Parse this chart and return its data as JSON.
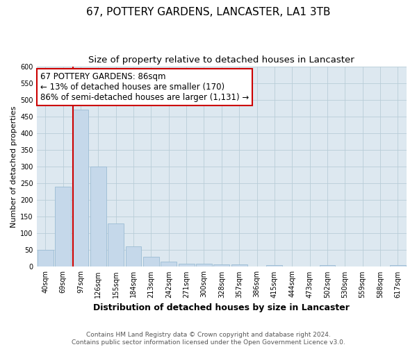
{
  "title": "67, POTTERY GARDENS, LANCASTER, LA1 3TB",
  "subtitle": "Size of property relative to detached houses in Lancaster",
  "xlabel": "Distribution of detached houses by size in Lancaster",
  "ylabel": "Number of detached properties",
  "bar_labels": [
    "40sqm",
    "69sqm",
    "97sqm",
    "126sqm",
    "155sqm",
    "184sqm",
    "213sqm",
    "242sqm",
    "271sqm",
    "300sqm",
    "328sqm",
    "357sqm",
    "386sqm",
    "415sqm",
    "444sqm",
    "473sqm",
    "502sqm",
    "530sqm",
    "559sqm",
    "588sqm",
    "617sqm"
  ],
  "bar_heights": [
    50,
    240,
    470,
    300,
    130,
    62,
    30,
    15,
    10,
    10,
    8,
    7,
    0,
    5,
    0,
    0,
    5,
    0,
    0,
    0,
    5
  ],
  "bar_color": "#c5d8ea",
  "bar_edge_color": "#9bbcd4",
  "vline_color": "#cc0000",
  "vline_bar_index": 2,
  "annotation_text": "67 POTTERY GARDENS: 86sqm\n← 13% of detached houses are smaller (170)\n86% of semi-detached houses are larger (1,131) →",
  "annotation_box_facecolor": "#ffffff",
  "annotation_box_edgecolor": "#cc0000",
  "plot_bg_color": "#dde8f0",
  "fig_bg_color": "#ffffff",
  "ylim": [
    0,
    600
  ],
  "yticks": [
    0,
    50,
    100,
    150,
    200,
    250,
    300,
    350,
    400,
    450,
    500,
    550,
    600
  ],
  "grid_color": "#b8cdd8",
  "footnote": "Contains HM Land Registry data © Crown copyright and database right 2024.\nContains public sector information licensed under the Open Government Licence v3.0.",
  "title_fontsize": 11,
  "subtitle_fontsize": 9.5,
  "xlabel_fontsize": 9,
  "ylabel_fontsize": 8,
  "tick_fontsize": 7,
  "annotation_fontsize": 8.5,
  "footnote_fontsize": 6.5
}
